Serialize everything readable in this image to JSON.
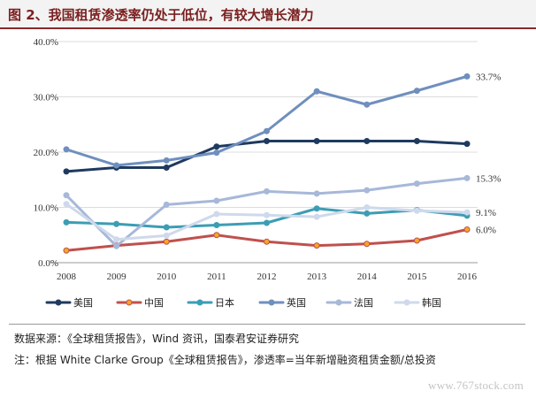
{
  "header": {
    "title": "图 2、我国租赁渗透率仍处于低位，有较大增长潜力"
  },
  "chart_data": {
    "type": "line",
    "x": [
      "2008",
      "2009",
      "2010",
      "2011",
      "2012",
      "2013",
      "2014",
      "2015",
      "2016"
    ],
    "ylim": [
      0,
      40
    ],
    "yticks": [
      "0.0%",
      "10.0%",
      "20.0%",
      "30.0%",
      "40.0%"
    ],
    "grid": "horizontal",
    "legend_position": "bottom",
    "series": [
      {
        "name": "美国",
        "color": "#1f3a5f",
        "marker": "circle",
        "values": [
          16.5,
          17.2,
          17.2,
          21.0,
          22.0,
          22.0,
          22.0,
          22.0,
          21.5
        ]
      },
      {
        "name": "中国",
        "color": "#c0504d",
        "marker": "circle",
        "marker_fill": "#f5a623",
        "values": [
          2.2,
          3.1,
          3.8,
          5.0,
          3.8,
          3.1,
          3.4,
          4.0,
          6.0
        ],
        "end_label": "6.0%"
      },
      {
        "name": "日本",
        "color": "#3c9db4",
        "marker": "circle",
        "values": [
          7.3,
          7.0,
          6.4,
          6.8,
          7.2,
          9.8,
          8.9,
          9.5,
          8.5
        ]
      },
      {
        "name": "英国",
        "color": "#6f8fbe",
        "marker": "circle",
        "values": [
          20.5,
          17.6,
          18.5,
          19.9,
          23.8,
          31.0,
          28.6,
          31.1,
          33.7
        ],
        "end_label": "33.7%"
      },
      {
        "name": "法国",
        "color": "#a7b8d8",
        "marker": "circle",
        "values": [
          12.2,
          3.0,
          10.5,
          11.2,
          12.9,
          12.5,
          13.1,
          14.3,
          15.3
        ],
        "end_label": "15.3%"
      },
      {
        "name": "韩国",
        "color": "#cfd9ec",
        "marker": "circle",
        "values": [
          10.6,
          4.2,
          4.9,
          8.8,
          8.6,
          8.3,
          10.0,
          9.4,
          9.1
        ],
        "end_label": "9.1%"
      }
    ]
  },
  "notes": {
    "source": "数据来源：《全球租赁报告》，Wind 资讯，国泰君安证券研究",
    "remark": "注：根据 White Clarke Group《全球租赁报告》，渗透率=当年新增融资租赁金额/总投资"
  },
  "watermark": "www.767stock.com"
}
